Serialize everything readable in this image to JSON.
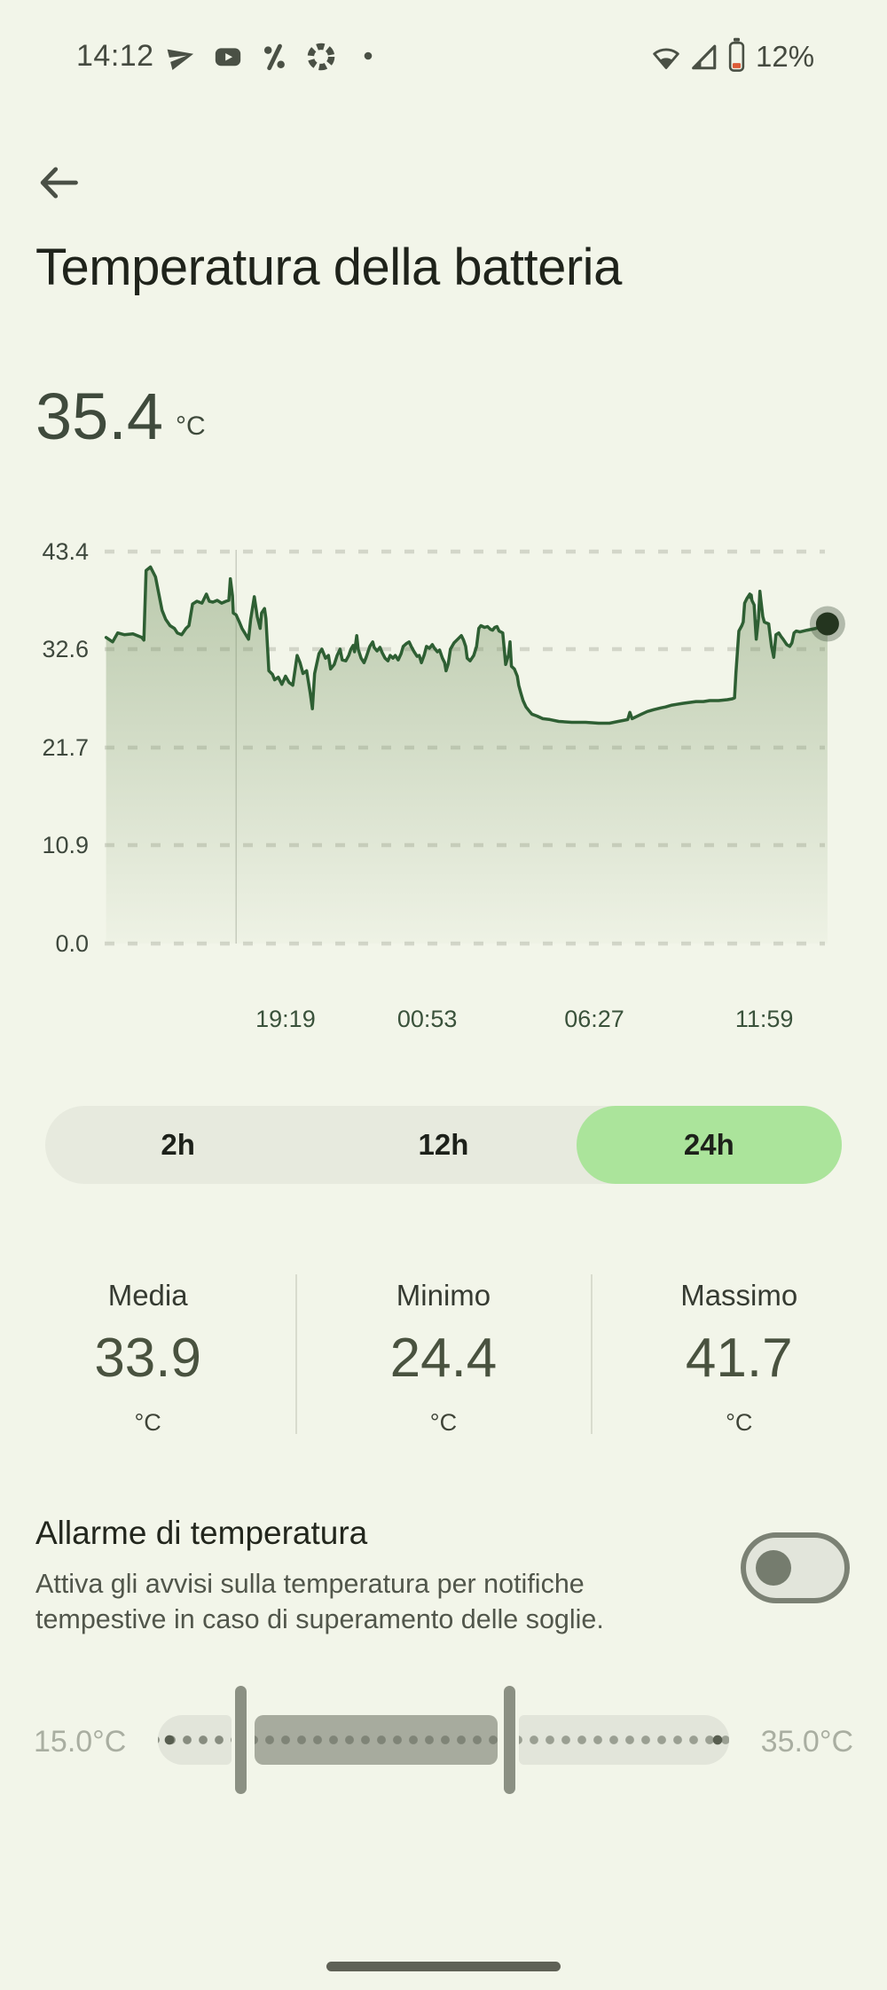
{
  "status_bar": {
    "time": "14:12",
    "battery_percent": "12%",
    "notification_icons": [
      "telegram-icon",
      "youtube-icon",
      "percent-app-icon",
      "aperture-icon",
      "more-dot-icon"
    ],
    "system_icons": [
      "wifi-icon",
      "cell-signal-icon",
      "battery-low-icon"
    ],
    "colors": {
      "icon": "#4a5045",
      "battery_low_fill": "#dd5b38"
    }
  },
  "header": {
    "title": "Temperatura della batteria"
  },
  "current": {
    "value": "35.4",
    "unit": "°C"
  },
  "chart_data": {
    "type": "area",
    "title": "Temperatura della batteria (24h)",
    "unit": "°C",
    "ylim": [
      0,
      43.4
    ],
    "y_ticks": [
      "43.4",
      "32.6",
      "21.7",
      "10.9",
      "0.0"
    ],
    "x_ticks": [
      {
        "label": "19:19",
        "f": 0.249
      },
      {
        "label": "00:53",
        "f": 0.444
      },
      {
        "label": "06:27",
        "f": 0.674
      },
      {
        "label": "11:59",
        "f": 0.908
      }
    ],
    "grid": "dashed",
    "legend_position": "none",
    "vline_f": 0.181,
    "end_marker_value": 35.4,
    "series": [
      {
        "name": "temperatura-batteria",
        "points": [
          [
            0.002,
            33.9
          ],
          [
            0.011,
            33.4
          ],
          [
            0.018,
            34.4
          ],
          [
            0.027,
            34.2
          ],
          [
            0.039,
            34.3
          ],
          [
            0.051,
            33.9
          ],
          [
            0.054,
            33.6
          ],
          [
            0.057,
            41.3
          ],
          [
            0.063,
            41.7
          ],
          [
            0.07,
            40.6
          ],
          [
            0.079,
            36.9
          ],
          [
            0.084,
            35.9
          ],
          [
            0.09,
            35.2
          ],
          [
            0.096,
            34.9
          ],
          [
            0.1,
            34.4
          ],
          [
            0.106,
            34.2
          ],
          [
            0.112,
            34.9
          ],
          [
            0.116,
            35.2
          ],
          [
            0.121,
            37.6
          ],
          [
            0.127,
            37.9
          ],
          [
            0.134,
            37.7
          ],
          [
            0.14,
            38.7
          ],
          [
            0.144,
            37.9
          ],
          [
            0.149,
            37.8
          ],
          [
            0.155,
            38.0
          ],
          [
            0.161,
            37.7
          ],
          [
            0.167,
            37.9
          ],
          [
            0.171,
            38.0
          ],
          [
            0.173,
            40.4
          ],
          [
            0.176,
            38.5
          ],
          [
            0.177,
            36.6
          ],
          [
            0.181,
            36.4
          ],
          [
            0.186,
            35.5
          ],
          [
            0.189,
            34.9
          ],
          [
            0.195,
            34.1
          ],
          [
            0.198,
            33.7
          ],
          [
            0.201,
            35.9
          ],
          [
            0.206,
            38.4
          ],
          [
            0.21,
            36.2
          ],
          [
            0.214,
            34.9
          ],
          [
            0.216,
            36.6
          ],
          [
            0.22,
            37.1
          ],
          [
            0.222,
            36.0
          ],
          [
            0.226,
            30.2
          ],
          [
            0.231,
            29.8
          ],
          [
            0.234,
            29.2
          ],
          [
            0.239,
            29.5
          ],
          [
            0.244,
            28.7
          ],
          [
            0.249,
            29.6
          ],
          [
            0.254,
            28.9
          ],
          [
            0.259,
            28.6
          ],
          [
            0.265,
            31.9
          ],
          [
            0.269,
            31.1
          ],
          [
            0.273,
            29.9
          ],
          [
            0.278,
            30.2
          ],
          [
            0.283,
            27.7
          ],
          [
            0.286,
            26.0
          ],
          [
            0.289,
            29.9
          ],
          [
            0.295,
            32.1
          ],
          [
            0.299,
            32.6
          ],
          [
            0.304,
            31.6
          ],
          [
            0.308,
            31.9
          ],
          [
            0.311,
            30.4
          ],
          [
            0.316,
            30.9
          ],
          [
            0.32,
            31.9
          ],
          [
            0.324,
            32.6
          ],
          [
            0.327,
            31.4
          ],
          [
            0.332,
            31.3
          ],
          [
            0.336,
            31.9
          ],
          [
            0.339,
            32.6
          ],
          [
            0.342,
            33.0
          ],
          [
            0.344,
            32.3
          ],
          [
            0.347,
            34.1
          ],
          [
            0.349,
            32.6
          ],
          [
            0.353,
            31.6
          ],
          [
            0.357,
            31.1
          ],
          [
            0.36,
            31.7
          ],
          [
            0.365,
            32.9
          ],
          [
            0.369,
            33.4
          ],
          [
            0.371,
            32.8
          ],
          [
            0.375,
            32.4
          ],
          [
            0.379,
            32.8
          ],
          [
            0.382,
            32.2
          ],
          [
            0.386,
            31.6
          ],
          [
            0.39,
            31.3
          ],
          [
            0.393,
            31.9
          ],
          [
            0.397,
            31.6
          ],
          [
            0.4,
            31.9
          ],
          [
            0.404,
            31.4
          ],
          [
            0.408,
            32.1
          ],
          [
            0.411,
            32.9
          ],
          [
            0.415,
            33.2
          ],
          [
            0.419,
            33.4
          ],
          [
            0.422,
            32.9
          ],
          [
            0.426,
            32.3
          ],
          [
            0.43,
            31.8
          ],
          [
            0.433,
            31.9
          ],
          [
            0.436,
            31.1
          ],
          [
            0.44,
            32.0
          ],
          [
            0.443,
            32.9
          ],
          [
            0.447,
            32.7
          ],
          [
            0.451,
            33.1
          ],
          [
            0.454,
            32.7
          ],
          [
            0.458,
            32.3
          ],
          [
            0.461,
            32.5
          ],
          [
            0.465,
            31.6
          ],
          [
            0.468,
            31.1
          ],
          [
            0.47,
            30.2
          ],
          [
            0.473,
            31.0
          ],
          [
            0.476,
            32.6
          ],
          [
            0.481,
            33.3
          ],
          [
            0.486,
            33.7
          ],
          [
            0.491,
            34.1
          ],
          [
            0.494,
            33.6
          ],
          [
            0.497,
            32.9
          ],
          [
            0.499,
            31.6
          ],
          [
            0.503,
            31.3
          ],
          [
            0.508,
            31.9
          ],
          [
            0.512,
            32.9
          ],
          [
            0.515,
            34.9
          ],
          [
            0.518,
            35.2
          ],
          [
            0.523,
            35.0
          ],
          [
            0.527,
            35.1
          ],
          [
            0.531,
            34.8
          ],
          [
            0.534,
            34.7
          ],
          [
            0.537,
            35.0
          ],
          [
            0.54,
            35.1
          ],
          [
            0.543,
            34.6
          ],
          [
            0.548,
            34.4
          ],
          [
            0.552,
            30.9
          ],
          [
            0.556,
            32.0
          ],
          [
            0.558,
            33.4
          ],
          [
            0.56,
            30.7
          ],
          [
            0.564,
            30.4
          ],
          [
            0.568,
            29.6
          ],
          [
            0.57,
            28.6
          ],
          [
            0.573,
            27.7
          ],
          [
            0.576,
            26.9
          ],
          [
            0.58,
            26.2
          ],
          [
            0.585,
            25.7
          ],
          [
            0.588,
            25.4
          ],
          [
            0.595,
            25.2
          ],
          [
            0.603,
            24.9
          ],
          [
            0.613,
            24.8
          ],
          [
            0.625,
            24.6
          ],
          [
            0.643,
            24.5
          ],
          [
            0.662,
            24.5
          ],
          [
            0.68,
            24.4
          ],
          [
            0.695,
            24.4
          ],
          [
            0.707,
            24.6
          ],
          [
            0.714,
            24.7
          ],
          [
            0.72,
            24.8
          ],
          [
            0.723,
            25.6
          ],
          [
            0.726,
            24.9
          ],
          [
            0.731,
            25.1
          ],
          [
            0.739,
            25.4
          ],
          [
            0.747,
            25.7
          ],
          [
            0.756,
            25.9
          ],
          [
            0.766,
            26.1
          ],
          [
            0.772,
            26.2
          ],
          [
            0.781,
            26.4
          ],
          [
            0.796,
            26.6
          ],
          [
            0.805,
            26.7
          ],
          [
            0.814,
            26.8
          ],
          [
            0.824,
            26.8
          ],
          [
            0.833,
            26.9
          ],
          [
            0.845,
            26.9
          ],
          [
            0.857,
            27.0
          ],
          [
            0.864,
            27.1
          ],
          [
            0.867,
            27.2
          ],
          [
            0.869,
            30.0
          ],
          [
            0.873,
            34.6
          ],
          [
            0.877,
            35.2
          ],
          [
            0.879,
            35.6
          ],
          [
            0.881,
            37.7
          ],
          [
            0.884,
            38.2
          ],
          [
            0.888,
            38.7
          ],
          [
            0.889,
            38.3
          ],
          [
            0.89,
            38.6
          ],
          [
            0.891,
            38.0
          ],
          [
            0.894,
            37.5
          ],
          [
            0.896,
            34.9
          ],
          [
            0.897,
            33.7
          ],
          [
            0.9,
            36.0
          ],
          [
            0.902,
            39.0
          ],
          [
            0.903,
            38.2
          ],
          [
            0.906,
            36.2
          ],
          [
            0.908,
            35.6
          ],
          [
            0.911,
            35.5
          ],
          [
            0.914,
            35.4
          ],
          [
            0.918,
            32.9
          ],
          [
            0.921,
            31.7
          ],
          [
            0.924,
            34.2
          ],
          [
            0.928,
            34.4
          ],
          [
            0.931,
            34.0
          ],
          [
            0.934,
            33.7
          ],
          [
            0.939,
            33.1
          ],
          [
            0.943,
            32.9
          ],
          [
            0.946,
            33.3
          ],
          [
            0.949,
            34.4
          ],
          [
            0.952,
            34.6
          ],
          [
            0.957,
            34.5
          ],
          [
            0.962,
            34.6
          ],
          [
            0.967,
            34.7
          ],
          [
            0.973,
            34.8
          ],
          [
            0.979,
            34.9
          ],
          [
            0.985,
            35.1
          ],
          [
            0.991,
            35.6
          ],
          [
            0.995,
            35.4
          ]
        ]
      }
    ],
    "colors": {
      "line": "#2e5f33",
      "fill_top": "rgba(116,146,96,0.45)",
      "fill_bottom": "rgba(116,146,96,0.03)",
      "grid": "#d3d6c9",
      "marker": "#24351f",
      "marker_halo": "rgba(45,62,40,0.32)",
      "vline": "#9aa092"
    }
  },
  "range_selector": {
    "options": [
      {
        "label": "2h",
        "selected": false
      },
      {
        "label": "12h",
        "selected": false
      },
      {
        "label": "24h",
        "selected": true
      }
    ],
    "selected_bg": "#abe49b"
  },
  "stats": {
    "items": [
      {
        "label": "Media",
        "value": "33.9",
        "unit": "°C"
      },
      {
        "label": "Minimo",
        "value": "24.4",
        "unit": "°C"
      },
      {
        "label": "Massimo",
        "value": "41.7",
        "unit": "°C"
      }
    ]
  },
  "alarm": {
    "title": "Allarme di temperatura",
    "description": "Attiva gli avvisi sulla temperatura per notifiche tempestive in caso di superamento delle soglie.",
    "toggle_on": false
  },
  "slider": {
    "min_label": "15.0°C",
    "max_label": "35.0°C"
  }
}
